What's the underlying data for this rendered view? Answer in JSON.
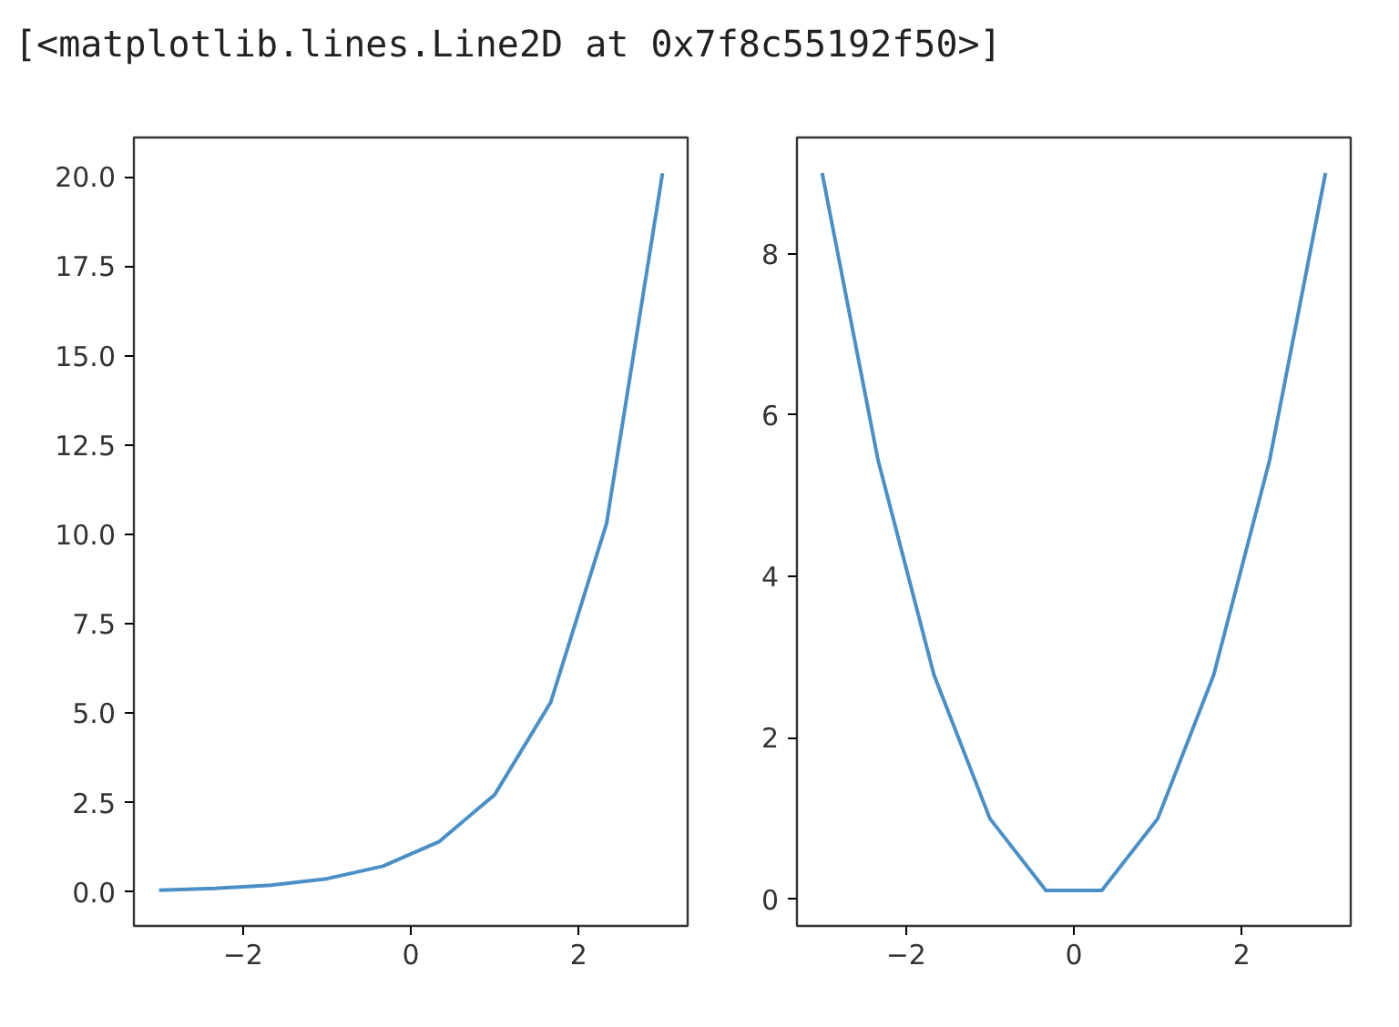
{
  "chart_data": [
    {
      "type": "line",
      "annotations": [
        "[<matplotlib.lines.Line2D at 0x7f8c55192f50>]"
      ],
      "x": [
        -3,
        -2.333,
        -1.667,
        -1,
        -0.333,
        0.333,
        1,
        1.667,
        2.333,
        3
      ],
      "series": [
        {
          "color": "#4a8fc6",
          "values": [
            0.05,
            0.1,
            0.19,
            0.37,
            0.72,
            1.4,
            2.72,
            5.3,
            10.3,
            20.1
          ]
        }
      ],
      "xlim": [
        -3.3,
        3.3
      ],
      "ylim": [
        -0.95,
        21.1
      ],
      "xticks": [
        {
          "value": -2,
          "label": "−2"
        },
        0,
        2
      ],
      "yticks": [
        {
          "value": 0,
          "label": "0.0"
        },
        2.5,
        {
          "value": 5,
          "label": "5.0"
        },
        7.5,
        {
          "value": 10,
          "label": "10.0"
        },
        12.5,
        {
          "value": 15,
          "label": "15.0"
        },
        17.5,
        {
          "value": 20,
          "label": "20.0"
        }
      ],
      "grid": false,
      "marker": "none",
      "line_style": "solid"
    },
    {
      "type": "line",
      "x": [
        -3,
        -2.333,
        -1.667,
        -1,
        -0.333,
        0.333,
        1,
        1.667,
        2.333,
        3
      ],
      "series": [
        {
          "color": "#4a8fc6",
          "values": [
            9,
            5.44,
            2.78,
            1,
            0.11,
            0.11,
            1,
            2.78,
            5.44,
            9
          ]
        }
      ],
      "xlim": [
        -3.3,
        3.3
      ],
      "ylim": [
        -0.33,
        9.44
      ],
      "xticks": [
        {
          "value": -2,
          "label": "−2"
        },
        0,
        2
      ],
      "yticks": [
        0,
        2,
        4,
        6,
        8
      ],
      "grid": false,
      "marker": "none",
      "line_style": "solid"
    }
  ]
}
